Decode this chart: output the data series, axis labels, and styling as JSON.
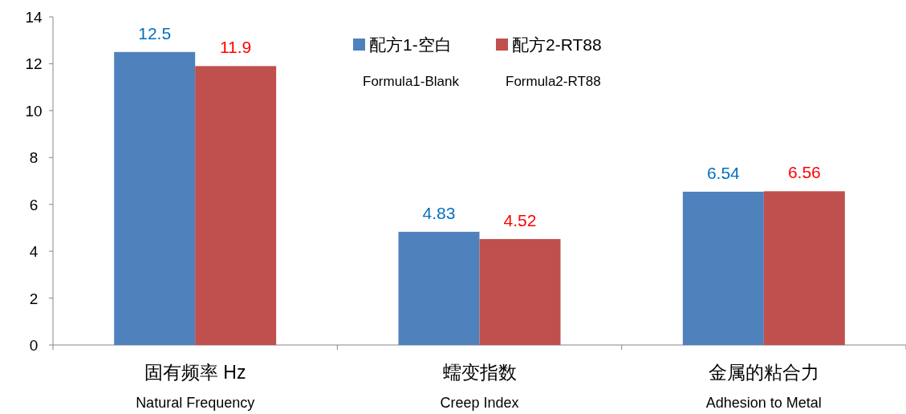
{
  "chart_data": {
    "type": "bar",
    "categories": [
      "固有频率 Hz\nNatural Frequency",
      "蠕变指数\nCreep Index",
      "金属的粘合力\nAdhesion to Metal"
    ],
    "series": [
      {
        "name": "配方1-空白\nFormula1-Blank",
        "color": "#4f81bd",
        "values": [
          12.5,
          4.83,
          6.54
        ]
      },
      {
        "name": "配方2-RT88\nFormula2-RT88",
        "color": "#c0504d",
        "values": [
          11.9,
          4.52,
          6.56
        ]
      }
    ],
    "ylim": [
      0,
      14
    ],
    "yticks": [
      0,
      2,
      4,
      6,
      8,
      10,
      12,
      14
    ],
    "data_labels": true,
    "legend": "top",
    "grid": false
  }
}
